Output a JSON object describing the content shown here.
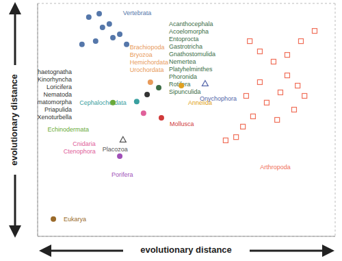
{
  "chart_data": {
    "type": "scatter",
    "x_label": "evolutionary distance",
    "y_label": "evolutionary distance",
    "xlim": [
      0,
      100
    ],
    "ylim": [
      0,
      100
    ],
    "xticks": [
      0,
      20,
      40,
      60,
      80,
      100
    ],
    "yticks": [
      0,
      20,
      40,
      60,
      80,
      100
    ],
    "grid": true,
    "tick_labels": false,
    "series": [
      {
        "name": "Vertebrata",
        "color": "#5577aa",
        "marker": "circle",
        "x": [
          17.2,
          20.7,
          24.1,
          27.6,
          29.9,
          21.8,
          19.5,
          14.9,
          25.3
        ],
        "y": [
          94.1,
          95.6,
          91.2,
          86.8,
          82.4,
          89.7,
          83.8,
          82.4,
          85.3
        ]
      },
      {
        "name": "Cephalochordata",
        "color": "#3aa0a0",
        "marker": "circle",
        "x": [
          33.3
        ],
        "y": [
          57.9
        ]
      },
      {
        "name": [
          "Brachiopoda",
          "Bryozoa",
          "Hemichordata",
          "Urochordata"
        ],
        "color": "#e89a5a",
        "marker": "circle",
        "x": [
          37.9
        ],
        "y": [
          66.2
        ]
      },
      {
        "name": [
          "Acanthocephala",
          "Acoelomorpha",
          "Entoprocta",
          "Gastrotricha",
          "Gnathostomulida",
          "Nemertea",
          "Platyhelminthes",
          "Phoronida",
          "Rotifera",
          "Sipunculida"
        ],
        "color": "#3c6e47",
        "marker": "circle",
        "x": [
          40.7
        ],
        "y": [
          63.8
        ]
      },
      {
        "name": [
          "Chaetognatha",
          "Kinorhyncha",
          "Loricifera",
          "Nematoda",
          "Nematomorpha",
          "Priapulida",
          "Xenoturbella"
        ],
        "color": "#333333",
        "marker": "circle",
        "x": [
          36.8
        ],
        "y": [
          60.9
        ]
      },
      {
        "name": "Echinodermata",
        "color": "#6aaa3a",
        "marker": "circle",
        "x": [
          25.3
        ],
        "y": [
          57.4
        ]
      },
      {
        "name": "Annelida",
        "color": "#e0a020",
        "marker": "circle",
        "x": [
          48.3
        ],
        "y": [
          64.7
        ]
      },
      {
        "name": "Onychophora",
        "color": "#5566aa",
        "marker": "triangle",
        "x": [
          56.3
        ],
        "y": [
          65.6
        ]
      },
      {
        "name": "Mollusca",
        "color": "#d03a3a",
        "marker": "circle",
        "x": [
          41.6
        ],
        "y": [
          50.9
        ]
      },
      {
        "name": [
          "Cnidaria",
          "Ctenophora"
        ],
        "color": "#e0609a",
        "marker": "circle",
        "x": [
          35.6
        ],
        "y": [
          52.9
        ]
      },
      {
        "name": "Placozoa",
        "color": "#555555",
        "marker": "triangle",
        "x": [
          28.7
        ],
        "y": [
          41.5
        ]
      },
      {
        "name": "Porifera",
        "color": "#a050b8",
        "marker": "circle",
        "x": [
          27.6
        ],
        "y": [
          34.4
        ]
      },
      {
        "name": "Eukarya",
        "color": "#9a6a2a",
        "marker": "circle",
        "x": [
          5.3
        ],
        "y": [
          7.4
        ]
      },
      {
        "name": "Arthropoda",
        "color": "#f0705a",
        "marker": "square",
        "x": [
          71.3,
          74.7,
          79.3,
          83.9,
          87.4,
          81.6,
          77.0,
          72.4,
          69.0,
          66.7,
          88.5,
          93.1,
          83.9,
          74.7,
          70.1,
          80.5,
          86.2,
          89.7,
          63.2
        ],
        "y": [
          83.8,
          79.4,
          75.0,
          69.1,
          64.7,
          61.8,
          57.4,
          51.5,
          47.1,
          42.6,
          83.8,
          88.2,
          77.9,
          66.2,
          60.3,
          50.0,
          54.4,
          60.3,
          41.2
        ]
      }
    ]
  }
}
